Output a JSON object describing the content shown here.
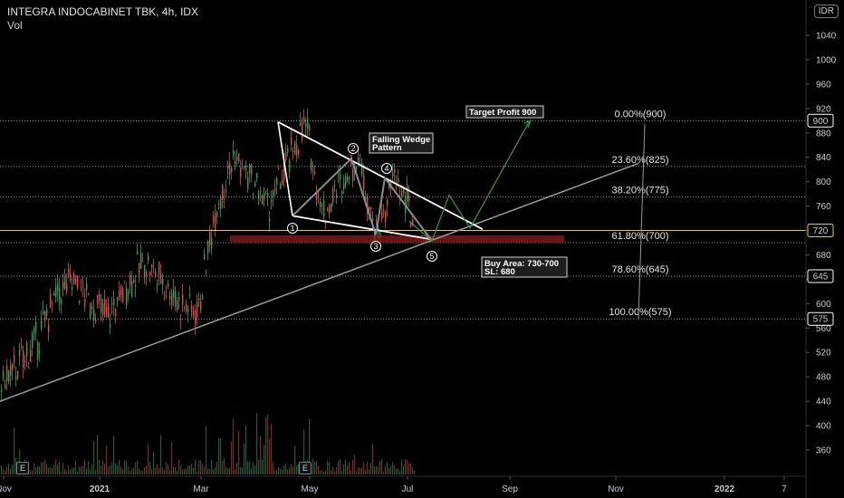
{
  "header": {
    "title": "INTEGRA INDOCABINET TBK, 4h, IDX",
    "indicator": "Vol",
    "currency": "IDR"
  },
  "chart_data": {
    "type": "candlestick",
    "ylim": [
      340,
      1080
    ],
    "y_ticks": [
      1040,
      1000,
      960,
      920,
      880,
      840,
      800,
      760,
      720,
      680,
      640,
      600,
      560,
      520,
      480,
      440,
      400,
      360
    ],
    "x_ticks": [
      "Nov",
      "2021",
      "Mar",
      "May",
      "Jul",
      "Sep",
      "Nov",
      "2022",
      "7"
    ],
    "price_tags": [
      {
        "text": "900",
        "value": 900,
        "color": "#ffffff"
      },
      {
        "text": "720",
        "value": 720,
        "color": "#e8c84a"
      },
      {
        "text": "645",
        "value": 645,
        "color": "#ffffff"
      },
      {
        "text": "575",
        "value": 575,
        "color": "#ffffff"
      }
    ],
    "fib_levels": [
      {
        "label": "0.00%(900)",
        "value": 900
      },
      {
        "label": "23.60%(825)",
        "value": 825
      },
      {
        "label": "38.20%(775)",
        "value": 775
      },
      {
        "label": "61.80%(700)",
        "value": 700
      },
      {
        "label": "78.60%(645)",
        "value": 645
      },
      {
        "label": "100.00%(575)",
        "value": 575
      }
    ],
    "annotations": {
      "target": "Target Profit 900",
      "pattern_line1": "Falling Wedge",
      "pattern_line2": "Pattern",
      "buy_line1": "Buy Area: 730-700",
      "buy_line2": "SL: 680",
      "wave_labels": [
        "1",
        "2",
        "3",
        "4",
        "5"
      ]
    },
    "buy_zone": [
      700,
      712
    ],
    "trendline": {
      "from_value": 440,
      "to_value": 830
    },
    "wedge_upper": {
      "from_value": 898,
      "to_value": 722
    },
    "wedge_lower": {
      "from_value": 744,
      "to_value": 705
    },
    "price_path": [
      [
        "Oct",
        470
      ],
      [
        "Nov",
        500
      ],
      [
        "Nov",
        540
      ],
      [
        "Dec",
        610
      ],
      [
        "Dec",
        640
      ],
      [
        "Dec",
        600
      ],
      [
        "Jan",
        580
      ],
      [
        "Jan",
        630
      ],
      [
        "Feb",
        670
      ],
      [
        "Feb",
        640
      ],
      [
        "Feb",
        600
      ],
      [
        "Mar",
        590
      ],
      [
        "Mar",
        760
      ],
      [
        "Mar",
        840
      ],
      [
        "Apr",
        800
      ],
      [
        "Apr",
        760
      ],
      [
        "Apr",
        830
      ],
      [
        "Apr",
        895
      ],
      [
        "May",
        745
      ],
      [
        "May",
        800
      ],
      [
        "Jun",
        840
      ],
      [
        "Jun",
        710
      ],
      [
        "Jun",
        810
      ],
      [
        "Jul",
        740
      ]
    ],
    "projection": [
      [
        690
      ],
      [
        778
      ],
      [
        724
      ],
      [
        900
      ]
    ]
  }
}
